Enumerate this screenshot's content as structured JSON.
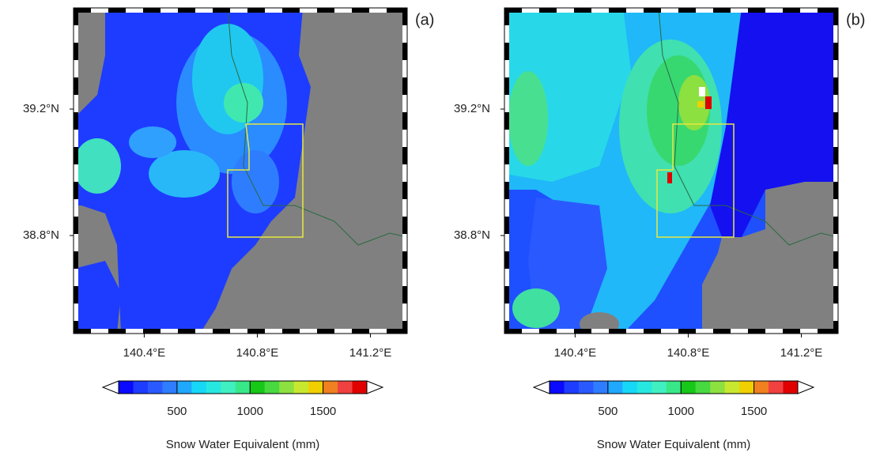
{
  "panels": [
    {
      "label": "(a)"
    },
    {
      "label": "(b)"
    }
  ],
  "map": {
    "xlim": [
      140.15,
      141.33
    ],
    "ylim": [
      38.49,
      39.52
    ],
    "xticks": [
      {
        "value": 140.4,
        "label": "140.4°E"
      },
      {
        "value": 140.8,
        "label": "140.8°E"
      },
      {
        "value": 141.2,
        "label": "141.2°E"
      }
    ],
    "yticks": [
      {
        "value": 39.2,
        "label": "39.2°N"
      },
      {
        "value": 38.8,
        "label": "38.8°N"
      }
    ]
  },
  "colorbar": {
    "label": "Snow Water Equivalent (mm)",
    "range": [
      100,
      1800
    ],
    "ticks": [
      500,
      1000,
      1500
    ],
    "colors": [
      "#0a0aff",
      "#1e3cff",
      "#2a5aff",
      "#2f7dff",
      "#20a8ff",
      "#17d7f7",
      "#27e8e0",
      "#40f0c0",
      "#38e888",
      "#18c818",
      "#48d840",
      "#8ce040",
      "#c8e830",
      "#f0d000",
      "#f08020",
      "#f04040",
      "#e00000"
    ]
  }
}
